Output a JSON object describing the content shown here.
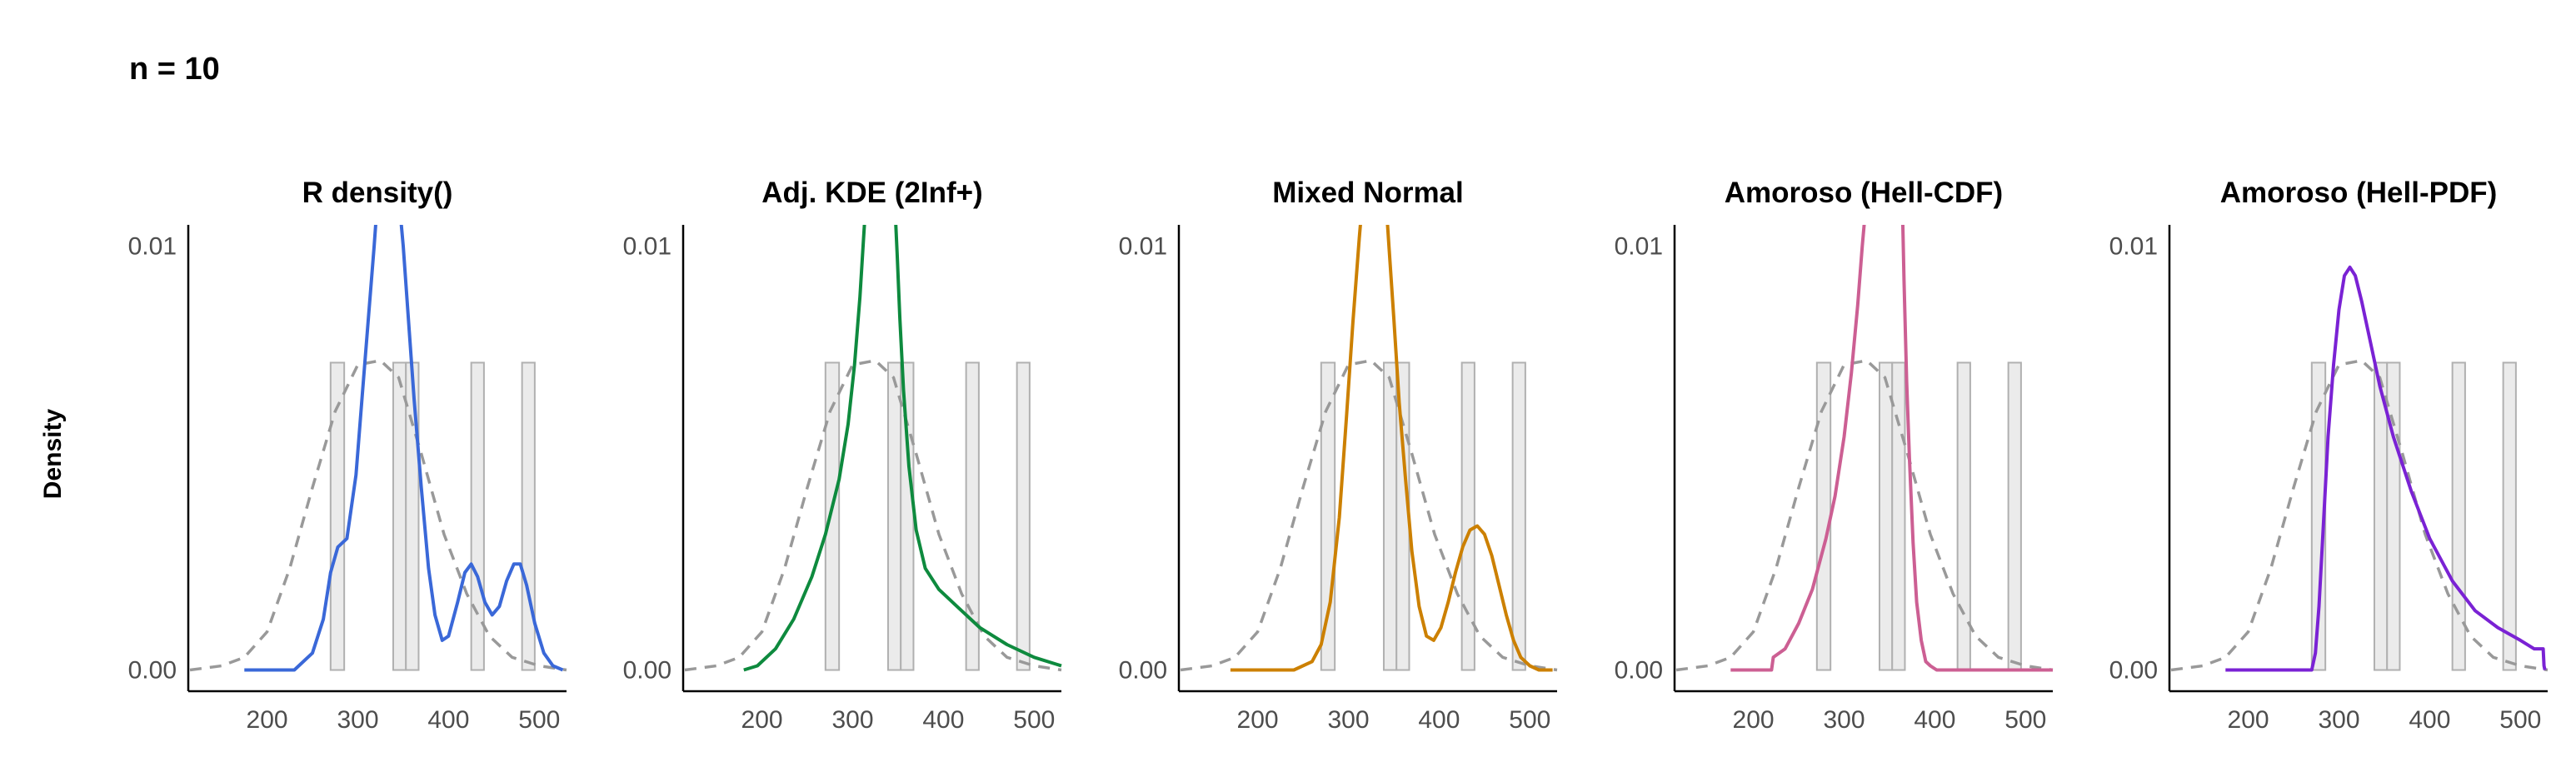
{
  "figure": {
    "title": "n = 10",
    "ylabel": "Density",
    "colors": {
      "bars": "#ebebeb",
      "bar_edge": "#b0b0b0",
      "reference": "#999999",
      "axis": "#000000"
    }
  },
  "chart_data": [
    {
      "type": "line",
      "title": "R density()",
      "color": "#3a68d8",
      "xlim": [
        115,
        530
      ],
      "ylim": [
        -0.0005,
        0.0105
      ],
      "xticks": [
        200,
        300,
        400,
        500
      ],
      "xtick_labels": [
        "200",
        "300",
        "400",
        "500"
      ],
      "yticks": [
        0.0,
        0.01
      ],
      "ytick_labels": [
        "0.00",
        "0.01"
      ],
      "histogram": [
        {
          "x0": 270,
          "x1": 285,
          "height": 0.00725
        },
        {
          "x0": 339,
          "x1": 353,
          "height": 0.00725
        },
        {
          "x0": 353,
          "x1": 367,
          "height": 0.00725
        },
        {
          "x0": 425,
          "x1": 439,
          "height": 0.00725
        },
        {
          "x0": 481,
          "x1": 495,
          "height": 0.00725
        }
      ],
      "reference": {
        "name": "",
        "x": [
          115,
          150,
          175,
          200,
          225,
          250,
          275,
          300,
          325,
          345,
          370,
          395,
          420,
          445,
          470,
          500,
          530
        ],
        "y": [
          0.0,
          0.0001,
          0.0003,
          0.0009,
          0.0024,
          0.0043,
          0.0061,
          0.0072,
          0.0073,
          0.0069,
          0.0051,
          0.0032,
          0.0018,
          0.0008,
          0.0003,
          0.0001,
          0.0
        ]
      },
      "series": [
        {
          "name": "",
          "x": [
            175,
            230,
            250,
            262,
            270,
            278,
            288,
            298,
            305,
            312,
            318,
            322
          ],
          "y": [
            0.0,
            0.0,
            0.0004,
            0.0012,
            0.0023,
            0.0029,
            0.0031,
            0.0046,
            0.0065,
            0.0084,
            0.01,
            0.0112
          ]
        },
        {
          "name": "",
          "x": [
            345,
            350,
            356,
            362,
            370,
            378,
            385,
            393,
            400,
            410,
            418,
            425,
            432,
            440,
            448,
            456,
            464,
            472,
            479,
            486,
            495,
            505,
            515,
            526
          ],
          "y": [
            0.0112,
            0.01,
            0.0082,
            0.0064,
            0.0043,
            0.0024,
            0.0013,
            0.0007,
            0.0008,
            0.0016,
            0.0023,
            0.0025,
            0.0022,
            0.0016,
            0.0013,
            0.0015,
            0.0021,
            0.0025,
            0.0025,
            0.002,
            0.0011,
            0.0004,
            0.0001,
            0.0
          ]
        }
      ]
    },
    {
      "type": "line",
      "title": "Adj. KDE (2Inf+)",
      "color": "#0e8a3e",
      "xlim": [
        115,
        530
      ],
      "ylim": [
        -0.0005,
        0.0105
      ],
      "xticks": [
        200,
        300,
        400,
        500
      ],
      "xtick_labels": [
        "200",
        "300",
        "400",
        "500"
      ],
      "yticks": [
        0.0,
        0.01
      ],
      "ytick_labels": [
        "0.00",
        "0.01"
      ],
      "histogram": [
        {
          "x0": 270,
          "x1": 285,
          "height": 0.00725
        },
        {
          "x0": 339,
          "x1": 353,
          "height": 0.00725
        },
        {
          "x0": 353,
          "x1": 367,
          "height": 0.00725
        },
        {
          "x0": 425,
          "x1": 439,
          "height": 0.00725
        },
        {
          "x0": 481,
          "x1": 495,
          "height": 0.00725
        }
      ],
      "reference": {
        "name": "",
        "x": [
          115,
          150,
          175,
          200,
          225,
          250,
          275,
          300,
          325,
          345,
          370,
          395,
          420,
          445,
          470,
          500,
          530
        ],
        "y": [
          0.0,
          0.0001,
          0.0003,
          0.0009,
          0.0024,
          0.0043,
          0.0061,
          0.0072,
          0.0073,
          0.0069,
          0.0051,
          0.0032,
          0.0018,
          0.0008,
          0.0003,
          0.0001,
          0.0
        ]
      },
      "series": [
        {
          "name": "",
          "x": [
            180,
            195,
            215,
            235,
            255,
            270,
            285,
            295,
            302,
            308,
            312,
            315
          ],
          "y": [
            0.0,
            0.0001,
            0.0005,
            0.0012,
            0.0022,
            0.0032,
            0.0045,
            0.0058,
            0.0072,
            0.0088,
            0.0102,
            0.0112
          ]
        },
        {
          "name": "",
          "x": [
            346,
            349,
            352,
            356,
            362,
            370,
            380,
            395,
            415,
            440,
            470,
            500,
            530
          ],
          "y": [
            0.0112,
            0.0098,
            0.0083,
            0.0066,
            0.0048,
            0.0033,
            0.0024,
            0.0019,
            0.0015,
            0.001,
            0.0006,
            0.0003,
            0.0001
          ]
        }
      ]
    },
    {
      "type": "line",
      "title": "Mixed Normal",
      "color": "#cc8000",
      "xlim": [
        115,
        530
      ],
      "ylim": [
        -0.0005,
        0.0105
      ],
      "xticks": [
        200,
        300,
        400,
        500
      ],
      "xtick_labels": [
        "200",
        "300",
        "400",
        "500"
      ],
      "yticks": [
        0.0,
        0.01
      ],
      "ytick_labels": [
        "0.00",
        "0.01"
      ],
      "histogram": [
        {
          "x0": 270,
          "x1": 285,
          "height": 0.00725
        },
        {
          "x0": 339,
          "x1": 353,
          "height": 0.00725
        },
        {
          "x0": 353,
          "x1": 367,
          "height": 0.00725
        },
        {
          "x0": 425,
          "x1": 439,
          "height": 0.00725
        },
        {
          "x0": 481,
          "x1": 495,
          "height": 0.00725
        }
      ],
      "reference": {
        "name": "",
        "x": [
          115,
          150,
          175,
          200,
          225,
          250,
          275,
          300,
          325,
          345,
          370,
          395,
          420,
          445,
          470,
          500,
          530
        ],
        "y": [
          0.0,
          0.0001,
          0.0003,
          0.0009,
          0.0024,
          0.0043,
          0.0061,
          0.0072,
          0.0073,
          0.0069,
          0.0051,
          0.0032,
          0.0018,
          0.0008,
          0.0003,
          0.0001,
          0.0
        ]
      },
      "series": [
        {
          "name": "",
          "x": [
            170,
            240,
            260,
            270,
            280,
            290,
            298,
            305,
            312,
            316
          ],
          "y": [
            0.0,
            0.0,
            0.0002,
            0.0006,
            0.0016,
            0.0036,
            0.006,
            0.0082,
            0.0102,
            0.0112
          ]
        },
        {
          "name": "",
          "x": [
            341,
            345,
            350,
            356,
            363,
            370,
            378,
            386,
            394,
            402,
            410,
            418,
            426,
            434,
            442,
            450,
            458,
            466,
            474,
            482,
            490,
            500,
            510,
            525
          ],
          "y": [
            0.0112,
            0.0099,
            0.0083,
            0.0063,
            0.0045,
            0.0028,
            0.0015,
            0.0008,
            0.0007,
            0.001,
            0.0016,
            0.0023,
            0.0029,
            0.0033,
            0.0034,
            0.0032,
            0.0027,
            0.002,
            0.0013,
            0.0007,
            0.0003,
            0.0001,
            0.0,
            0.0
          ]
        }
      ]
    },
    {
      "type": "line",
      "title": "Amoroso (Hell-CDF)",
      "color": "#cc5f93",
      "xlim": [
        115,
        530
      ],
      "ylim": [
        -0.0005,
        0.0105
      ],
      "xticks": [
        200,
        300,
        400,
        500
      ],
      "xtick_labels": [
        "200",
        "300",
        "400",
        "500"
      ],
      "yticks": [
        0.0,
        0.01
      ],
      "ytick_labels": [
        "0.00",
        "0.01"
      ],
      "histogram": [
        {
          "x0": 270,
          "x1": 285,
          "height": 0.00725
        },
        {
          "x0": 339,
          "x1": 353,
          "height": 0.00725
        },
        {
          "x0": 353,
          "x1": 367,
          "height": 0.00725
        },
        {
          "x0": 425,
          "x1": 439,
          "height": 0.00725
        },
        {
          "x0": 481,
          "x1": 495,
          "height": 0.00725
        }
      ],
      "reference": {
        "name": "",
        "x": [
          115,
          150,
          175,
          200,
          225,
          250,
          275,
          300,
          325,
          345,
          370,
          395,
          420,
          445,
          470,
          500,
          530
        ],
        "y": [
          0.0,
          0.0001,
          0.0003,
          0.0009,
          0.0024,
          0.0043,
          0.0061,
          0.0072,
          0.0073,
          0.0069,
          0.0051,
          0.0032,
          0.0018,
          0.0008,
          0.0003,
          0.0001,
          0.0
        ]
      },
      "series": [
        {
          "name": "",
          "x": [
            175,
            220,
            222,
            235,
            250,
            265,
            280,
            290,
            300,
            308,
            315,
            320,
            325
          ],
          "y": [
            0.0,
            0.0,
            0.0003,
            0.0005,
            0.0011,
            0.0019,
            0.0031,
            0.0041,
            0.0055,
            0.007,
            0.0086,
            0.01,
            0.0112
          ]
        },
        {
          "name": "",
          "x": [
            364,
            366,
            369,
            372,
            376,
            380,
            385,
            390,
            395,
            402,
            410,
            430,
            530
          ],
          "y": [
            0.0112,
            0.0092,
            0.0068,
            0.005,
            0.003,
            0.0016,
            0.0007,
            0.0002,
            0.0001,
            0.0,
            0.0,
            0.0,
            0.0
          ]
        }
      ]
    },
    {
      "type": "line",
      "title": "Amoroso (Hell-PDF)",
      "color": "#7a22d4",
      "xlim": [
        115,
        530
      ],
      "ylim": [
        -0.0005,
        0.0105
      ],
      "xticks": [
        200,
        300,
        400,
        500
      ],
      "xtick_labels": [
        "200",
        "300",
        "400",
        "500"
      ],
      "yticks": [
        0.0,
        0.01
      ],
      "ytick_labels": [
        "0.00",
        "0.01"
      ],
      "histogram": [
        {
          "x0": 270,
          "x1": 285,
          "height": 0.00725
        },
        {
          "x0": 339,
          "x1": 353,
          "height": 0.00725
        },
        {
          "x0": 353,
          "x1": 367,
          "height": 0.00725
        },
        {
          "x0": 425,
          "x1": 439,
          "height": 0.00725
        },
        {
          "x0": 481,
          "x1": 495,
          "height": 0.00725
        }
      ],
      "reference": {
        "name": "",
        "x": [
          115,
          150,
          175,
          200,
          225,
          250,
          275,
          300,
          325,
          345,
          370,
          395,
          420,
          445,
          470,
          500,
          530
        ],
        "y": [
          0.0,
          0.0001,
          0.0003,
          0.0009,
          0.0024,
          0.0043,
          0.0061,
          0.0072,
          0.0073,
          0.0069,
          0.0051,
          0.0032,
          0.0018,
          0.0008,
          0.0003,
          0.0001,
          0.0
        ]
      },
      "series": [
        {
          "name": "",
          "x": [
            175,
            270,
            274,
            278,
            283,
            288,
            294,
            300,
            306,
            312,
            318,
            325,
            335,
            345,
            360,
            380,
            400,
            425,
            450,
            475,
            500,
            515,
            525,
            526,
            527
          ],
          "y": [
            0.0,
            0.0,
            0.0004,
            0.0015,
            0.0035,
            0.0055,
            0.0072,
            0.0085,
            0.0093,
            0.0095,
            0.0093,
            0.0087,
            0.0077,
            0.0067,
            0.0055,
            0.0042,
            0.0031,
            0.0021,
            0.0014,
            0.001,
            0.0007,
            0.0005,
            0.0005,
            0.0001,
            0.0
          ]
        }
      ]
    }
  ]
}
